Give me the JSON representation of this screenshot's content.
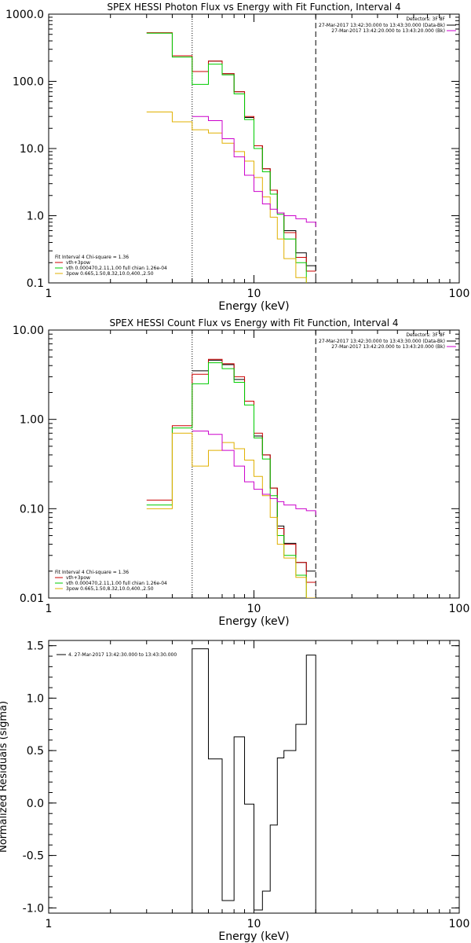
{
  "chart_data": [
    {
      "type": "line",
      "title": "SPEX HESSI Photon Flux vs Energy with Fit Function, Interval 4",
      "xlabel": "Energy (keV)",
      "ylabel": "",
      "xscale": "log",
      "yscale": "log",
      "xlim": [
        1,
        100
      ],
      "ylim": [
        0.1,
        1000
      ],
      "xticks": [
        {
          "v": 1,
          "label": "1"
        },
        {
          "v": 10,
          "label": "10"
        },
        {
          "v": 100,
          "label": "100"
        }
      ],
      "yticks": [
        {
          "v": 0.1,
          "label": "0.1"
        },
        {
          "v": 1,
          "label": "1.0"
        },
        {
          "v": 10,
          "label": "10.0"
        },
        {
          "v": 100,
          "label": "100.0"
        },
        {
          "v": 1000,
          "label": "1000.0"
        }
      ],
      "vlines": [
        {
          "x": 5,
          "style": "dotted",
          "color": "#000000"
        },
        {
          "x": 20,
          "style": "dashed",
          "color": "#000000"
        }
      ],
      "legend_top": {
        "title": "Detectors: 3F 8F",
        "lines": [
          {
            "text": "27-Mar-2017 13:42:30.000 to 13:43:30.000 (Data-Bk)",
            "color": "#000000"
          },
          {
            "text": "27-Mar-2017 13:42:20.000 to 13:43:20.000 (Bk)",
            "color": "#cc00cc"
          }
        ]
      },
      "legend_bottom": {
        "title": "Fit Interval 4   Chi-square = 1.36",
        "lines": [
          {
            "text": "vth+3pow",
            "color": "#cc0000"
          },
          {
            "text": "vth 0.000470,2.11,1.00  full chian 1.26e-04",
            "color": "#00cc00"
          },
          {
            "text": "3pow 0.665,1.50,8.32,10.0,400.,2.50",
            "color": "#e0b000"
          }
        ]
      },
      "edges": [
        3,
        4,
        5,
        6,
        7,
        8,
        9,
        10,
        11,
        12,
        13,
        14,
        16,
        18,
        20
      ],
      "series": [
        {
          "color": "#000000",
          "start": 2,
          "values": [
            140,
            200,
            130,
            70,
            29,
            11,
            5,
            2.4,
            1.1,
            0.6,
            0.28,
            0.18,
            0.15
          ]
        },
        {
          "color": "#cc0000",
          "start": 0,
          "values": [
            530,
            240,
            140,
            200,
            130,
            70,
            30,
            11,
            5,
            2.4,
            1.1,
            0.56,
            0.24,
            0.15
          ]
        },
        {
          "color": "#00cc00",
          "start": 0,
          "values": [
            520,
            230,
            90,
            180,
            125,
            65,
            27,
            10,
            4.5,
            2.1,
            1.05,
            0.45,
            0.2,
            0.08
          ]
        },
        {
          "color": "#e0b000",
          "start": 0,
          "values": [
            35,
            25,
            19,
            17,
            12,
            9,
            6.5,
            3.7,
            1.9,
            0.95,
            0.45,
            0.23,
            0.12,
            0.08
          ]
        },
        {
          "color": "#cc00cc",
          "start": 2,
          "values": [
            30,
            26,
            14,
            7.5,
            4,
            2.3,
            1.5,
            1.25,
            1.1,
            1,
            0.9,
            0.8,
            0.68
          ],
          "drop": true
        }
      ]
    },
    {
      "type": "line",
      "title": "SPEX HESSI Count Flux vs Energy with Fit Function, Interval 4",
      "xlabel": "Energy (keV)",
      "ylabel": "",
      "xscale": "log",
      "yscale": "log",
      "xlim": [
        1,
        100
      ],
      "ylim": [
        0.01,
        10
      ],
      "xticks": [
        {
          "v": 1,
          "label": "1"
        },
        {
          "v": 10,
          "label": "10"
        },
        {
          "v": 100,
          "label": "100"
        }
      ],
      "yticks": [
        {
          "v": 0.01,
          "label": "0.01"
        },
        {
          "v": 0.1,
          "label": "0.10"
        },
        {
          "v": 1,
          "label": "1.00"
        },
        {
          "v": 10,
          "label": "10.00"
        }
      ],
      "vlines": [
        {
          "x": 5,
          "style": "dotted",
          "color": "#000000"
        },
        {
          "x": 20,
          "style": "dashed",
          "color": "#000000"
        }
      ],
      "legend_top": {
        "title": "Detectors: 3F 8F",
        "lines": [
          {
            "text": "27-Mar-2017 13:42:30.000 to 13:43:30.000 (Data-Bk)",
            "color": "#000000"
          },
          {
            "text": "27-Mar-2017 13:42:20.000 to 13:43:20.000 (Bk)",
            "color": "#cc00cc"
          }
        ]
      },
      "legend_bottom": {
        "title": "Fit Interval 4   Chi-square = 1.36",
        "lines": [
          {
            "text": "vth+3pow",
            "color": "#cc0000"
          },
          {
            "text": "vth 0.000470,2.11,1.00  full chian 1.26e-04",
            "color": "#00cc00"
          },
          {
            "text": "3pow 0.665,1.50,8.32,10.0,400.,2.50",
            "color": "#e0b000"
          }
        ]
      },
      "edges": [
        3,
        4,
        5,
        6,
        7,
        8,
        9,
        10,
        11,
        12,
        13,
        14,
        16,
        18,
        20
      ],
      "series": [
        {
          "color": "#000000",
          "start": 2,
          "values": [
            3.5,
            4.6,
            4.1,
            2.8,
            1.6,
            0.65,
            0.4,
            0.17,
            0.064,
            0.041,
            0.025,
            0.02,
            0.02
          ]
        },
        {
          "color": "#cc0000",
          "start": 0,
          "values": [
            0.125,
            0.85,
            3.2,
            4.7,
            4.2,
            3,
            1.6,
            0.7,
            0.4,
            0.17,
            0.06,
            0.04,
            0.025,
            0.015
          ]
        },
        {
          "color": "#00cc00",
          "start": 0,
          "values": [
            0.11,
            0.8,
            2.5,
            4.3,
            3.7,
            2.6,
            1.45,
            0.62,
            0.36,
            0.14,
            0.05,
            0.03,
            0.018,
            0.01
          ]
        },
        {
          "color": "#e0b000",
          "start": 0,
          "values": [
            0.1,
            0.7,
            0.3,
            0.45,
            0.55,
            0.47,
            0.35,
            0.23,
            0.14,
            0.08,
            0.04,
            0.028,
            0.017,
            0.01
          ]
        },
        {
          "color": "#cc00cc",
          "start": 2,
          "values": [
            0.74,
            0.68,
            0.45,
            0.3,
            0.2,
            0.165,
            0.145,
            0.13,
            0.12,
            0.11,
            0.1,
            0.095,
            0.085
          ],
          "drop": true
        }
      ]
    },
    {
      "type": "line",
      "title": "",
      "xlabel": "Energy (keV)",
      "ylabel": "Normalized Residuals (sigma)",
      "xscale": "log",
      "yscale": "linear",
      "xlim": [
        1,
        100
      ],
      "ylim": [
        -1.05,
        1.55
      ],
      "xticks": [
        {
          "v": 1,
          "label": "1"
        },
        {
          "v": 10,
          "label": "10"
        },
        {
          "v": 100,
          "label": "100"
        }
      ],
      "yticks": [
        {
          "v": -1,
          "label": "-1.0"
        },
        {
          "v": -0.5,
          "label": "-0.5"
        },
        {
          "v": 0,
          "label": "0.0"
        },
        {
          "v": 0.5,
          "label": "0.5"
        },
        {
          "v": 1,
          "label": "1.0"
        },
        {
          "v": 1.5,
          "label": "1.5"
        }
      ],
      "vlines": [],
      "legend_top": null,
      "legend_bottom": null,
      "residual_legend": "4. 27-Mar-2017 13:42:30.000 to 13:43:30.000",
      "edges": [
        5,
        6,
        7,
        8,
        9,
        10,
        11,
        12,
        13,
        14,
        16,
        18,
        20
      ],
      "series": [
        {
          "color": "#000000",
          "start": 0,
          "values": [
            1.47,
            0.42,
            -0.93,
            0.63,
            -0.01,
            -1.02,
            -0.84,
            -0.21,
            0.43,
            0.5,
            0.75,
            1.41
          ],
          "drop": true,
          "rise": true
        }
      ]
    }
  ]
}
